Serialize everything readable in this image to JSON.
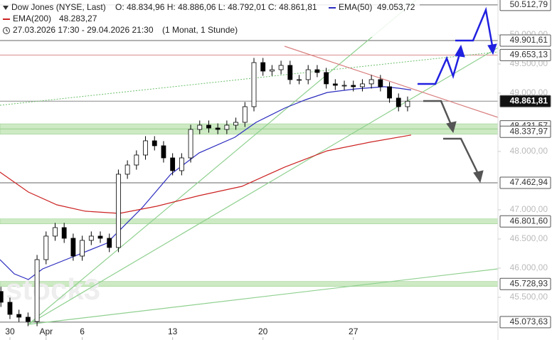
{
  "chart_data": {
    "type": "candlestick",
    "header": {
      "instrument": "Dow Jones (NYSE, Last)",
      "ohlc": "O: 48.834,96   H: 48.886,06   L: 48.792,01   C: 48.861,81",
      "period": "27.03.2026 17:30 - 29.04.2026 21:30",
      "interval": "(1 Monat, 1 Stunde)"
    },
    "watermark": "stock3",
    "x": [
      -0.5,
      0,
      0.5,
      1,
      1.5,
      2,
      2.5,
      3,
      3.5,
      4,
      4.5,
      5,
      5.5,
      6,
      6.5,
      7,
      7.5,
      8,
      8.5,
      9,
      9.5,
      10,
      10.5,
      11,
      11.5,
      12,
      12.5,
      13,
      13.5,
      14,
      14.5,
      15,
      15.5,
      16,
      16.5,
      17,
      17.5,
      18,
      18.5,
      19,
      19.5,
      20,
      20.5,
      21,
      21.5,
      22
    ],
    "open": [
      45600,
      45415,
      45207,
      45159,
      45085,
      46146,
      46549,
      46695,
      46512,
      46207,
      46476,
      46549,
      46512,
      46354,
      47610,
      47768,
      47939,
      48183,
      48098,
      47890,
      47671,
      47890,
      48378,
      48451,
      48402,
      48378,
      48451,
      48500,
      48768,
      49524,
      49378,
      49402,
      49476,
      49232,
      49232,
      49402,
      49354,
      49159,
      49134,
      49134,
      49110,
      49159,
      49232,
      49110,
      48915,
      48768
    ],
    "high": [
      45680,
      45495,
      45287,
      45239,
      46226,
      46629,
      46775,
      46775,
      46592,
      46556,
      46629,
      46629,
      46592,
      47690,
      47848,
      48019,
      48263,
      48263,
      48178,
      47970,
      47970,
      48458,
      48531,
      48531,
      48482,
      48531,
      48580,
      48848,
      49604,
      49604,
      49482,
      49556,
      49556,
      49312,
      49482,
      49482,
      49434,
      49239,
      49214,
      49214,
      49239,
      49312,
      49312,
      49190,
      48995,
      48942
    ],
    "low": [
      45335,
      45127,
      45079,
      45005,
      45005,
      46066,
      46469,
      46432,
      46127,
      46127,
      46396,
      46432,
      46274,
      46274,
      47530,
      47688,
      47859,
      48018,
      47810,
      47591,
      47591,
      47810,
      48298,
      48322,
      48298,
      48298,
      48371,
      48420,
      48688,
      49298,
      49298,
      49322,
      49152,
      49152,
      49152,
      49274,
      49079,
      49054,
      49054,
      49030,
      49030,
      49079,
      49030,
      48835,
      48688,
      48688
    ],
    "close": [
      45415,
      45207,
      45159,
      45085,
      46146,
      46549,
      46695,
      46512,
      46207,
      46476,
      46549,
      46512,
      46354,
      47610,
      47768,
      47939,
      48183,
      48098,
      47890,
      47671,
      47890,
      48378,
      48451,
      48402,
      48378,
      48451,
      48500,
      48768,
      49524,
      49378,
      49402,
      49476,
      49232,
      49232,
      49402,
      49354,
      49159,
      49134,
      49134,
      49110,
      49159,
      49232,
      49110,
      48915,
      48768,
      48862
    ],
    "up_color": "#ffffff",
    "down_color": "#000000",
    "series": [
      {
        "name": "EMA(50)",
        "last_label": "49.053,72",
        "color": "#2b2bbf",
        "x": [
          -0.55,
          0.24,
          1.02,
          1.81,
          3.39,
          5.35,
          6.14,
          7.32,
          8.9,
          10.47,
          12.44,
          13.62,
          15.2,
          16.38,
          17.56,
          19.13,
          20.71,
          21.5,
          22.2
        ],
        "values": [
          46146,
          45902,
          45805,
          45988,
          46183,
          46427,
          46671,
          47037,
          47610,
          47976,
          48244,
          48500,
          48744,
          48890,
          49012,
          49073,
          49110,
          49085,
          49054
        ]
      },
      {
        "name": "EMA(200)",
        "last_label": "48.283,27",
        "color": "#cc2222",
        "x": [
          -0.55,
          1.02,
          2.6,
          4.17,
          6.06,
          8.11,
          10.47,
          12.83,
          15.2,
          17.56,
          19.92,
          22.2
        ],
        "values": [
          47646,
          47305,
          47085,
          46976,
          46939,
          47061,
          47244,
          47402,
          47732,
          48012,
          48159,
          48283
        ]
      }
    ],
    "levels": [
      {
        "value": 50512.79,
        "label": "50.512,79",
        "style": "line"
      },
      {
        "value": 49901.61,
        "label": "49.901,61",
        "style": "line"
      },
      {
        "value": 49653.13,
        "label": "49.653,13",
        "style": "red"
      },
      {
        "value": 48431.57,
        "label": "48.431,57",
        "style": "band"
      },
      {
        "value": 48861.81,
        "label": "48.861,81",
        "style": "current"
      },
      {
        "value": 48337.97,
        "label": "48.337,97",
        "style": "band"
      },
      {
        "value": 47462.94,
        "label": "47.462,94",
        "style": "line"
      },
      {
        "value": 46801.6,
        "label": "46.801,60",
        "style": "band"
      },
      {
        "value": 45728.93,
        "label": "45.728,93",
        "style": "band"
      },
      {
        "value": 45073.63,
        "label": "45.073,63",
        "style": "line"
      }
    ],
    "xlim": [
      -0.55,
      27.0
    ],
    "ylim": [
      44768,
      50597
    ],
    "xticks": [
      {
        "value": 0,
        "label": "30"
      },
      {
        "value": 2,
        "label": "Apr"
      },
      {
        "value": 4,
        "label": "6"
      },
      {
        "value": 9,
        "label": "13"
      },
      {
        "value": 14,
        "label": "20"
      },
      {
        "value": 19,
        "label": "27"
      }
    ],
    "yticks": [
      {
        "value": 50000,
        "label": "50.000,00"
      },
      {
        "value": 49500,
        "label": "49.500,00"
      },
      {
        "value": 49000,
        "label": "49.000,00"
      },
      {
        "value": 48000,
        "label": "48.000,00"
      },
      {
        "value": 47000,
        "label": "47.000,00"
      },
      {
        "value": 46500,
        "label": "46.500,00"
      },
      {
        "value": 46000,
        "label": "46.000,00"
      },
      {
        "value": 45500,
        "label": "45.500,00"
      }
    ]
  }
}
